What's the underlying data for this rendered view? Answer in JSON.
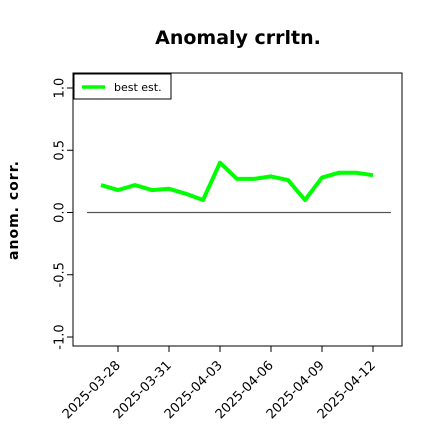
{
  "chart_data": {
    "type": "line",
    "title": "Anomaly crrltn.",
    "xlabel": "",
    "ylabel": "anom. corr.",
    "ylim": [
      -1.0,
      1.0
    ],
    "yticks": [
      "-1.0",
      "-0.5",
      "0.0",
      "0.5",
      "1.0"
    ],
    "xticks": [
      "2025-03-28",
      "2025-03-31",
      "2025-04-03",
      "2025-04-06",
      "2025-04-09",
      "2025-04-12"
    ],
    "x": [
      "2025-03-27",
      "2025-03-28",
      "2025-03-29",
      "2025-03-30",
      "2025-03-31",
      "2025-04-01",
      "2025-04-02",
      "2025-04-03",
      "2025-04-04",
      "2025-04-05",
      "2025-04-06",
      "2025-04-07",
      "2025-04-08",
      "2025-04-09",
      "2025-04-10",
      "2025-04-11",
      "2025-04-12"
    ],
    "series": [
      {
        "name": "best est.",
        "color": "#00ff00",
        "values": [
          0.22,
          0.18,
          0.22,
          0.18,
          0.19,
          0.15,
          0.1,
          0.4,
          0.27,
          0.27,
          0.29,
          0.26,
          0.1,
          0.28,
          0.32,
          0.32,
          0.3
        ]
      }
    ],
    "reference_line": 0.0,
    "legend_position": "top-left",
    "grid": false
  }
}
